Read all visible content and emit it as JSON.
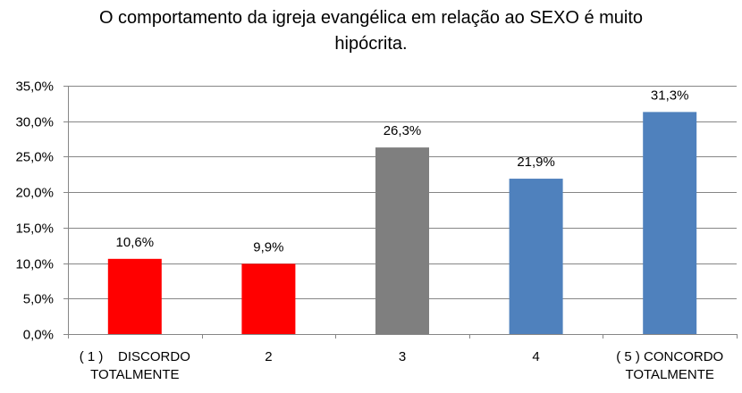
{
  "chart_data": {
    "type": "bar",
    "title": "O comportamento da igreja evangélica em relação ao SEXO é muito hipócrita.",
    "title_lines": [
      "O comportamento da igreja evangélica em relação ao SEXO é muito",
      "hipócrita."
    ],
    "categories": [
      "( 1 )    DISCORDO TOTALMENTE",
      "2",
      "3",
      "4",
      "( 5 ) CONCORDO TOTALMENTE"
    ],
    "category_lines": [
      [
        "( 1 )    DISCORDO",
        "TOTALMENTE"
      ],
      [
        "2"
      ],
      [
        "3"
      ],
      [
        "4"
      ],
      [
        "( 5 ) CONCORDO",
        "TOTALMENTE"
      ]
    ],
    "values": [
      10.6,
      9.9,
      26.3,
      21.9,
      31.3
    ],
    "data_labels": [
      "10,6%",
      "9,9%",
      "26,3%",
      "21,9%",
      "31,3%"
    ],
    "bar_colors": [
      "#ff0000",
      "#ff0000",
      "#7f7f7f",
      "#4f81bd",
      "#4f81bd"
    ],
    "ylim": [
      0,
      35
    ],
    "yticks": [
      0,
      5,
      10,
      15,
      20,
      25,
      30,
      35
    ],
    "ytick_labels": [
      "0,0%",
      "5,0%",
      "10,0%",
      "15,0%",
      "20,0%",
      "25,0%",
      "30,0%",
      "35,0%"
    ],
    "xlabel": "",
    "ylabel": "",
    "grid": true,
    "legend": "none",
    "gridline_color": "#868686",
    "axis_color": "#868686"
  }
}
